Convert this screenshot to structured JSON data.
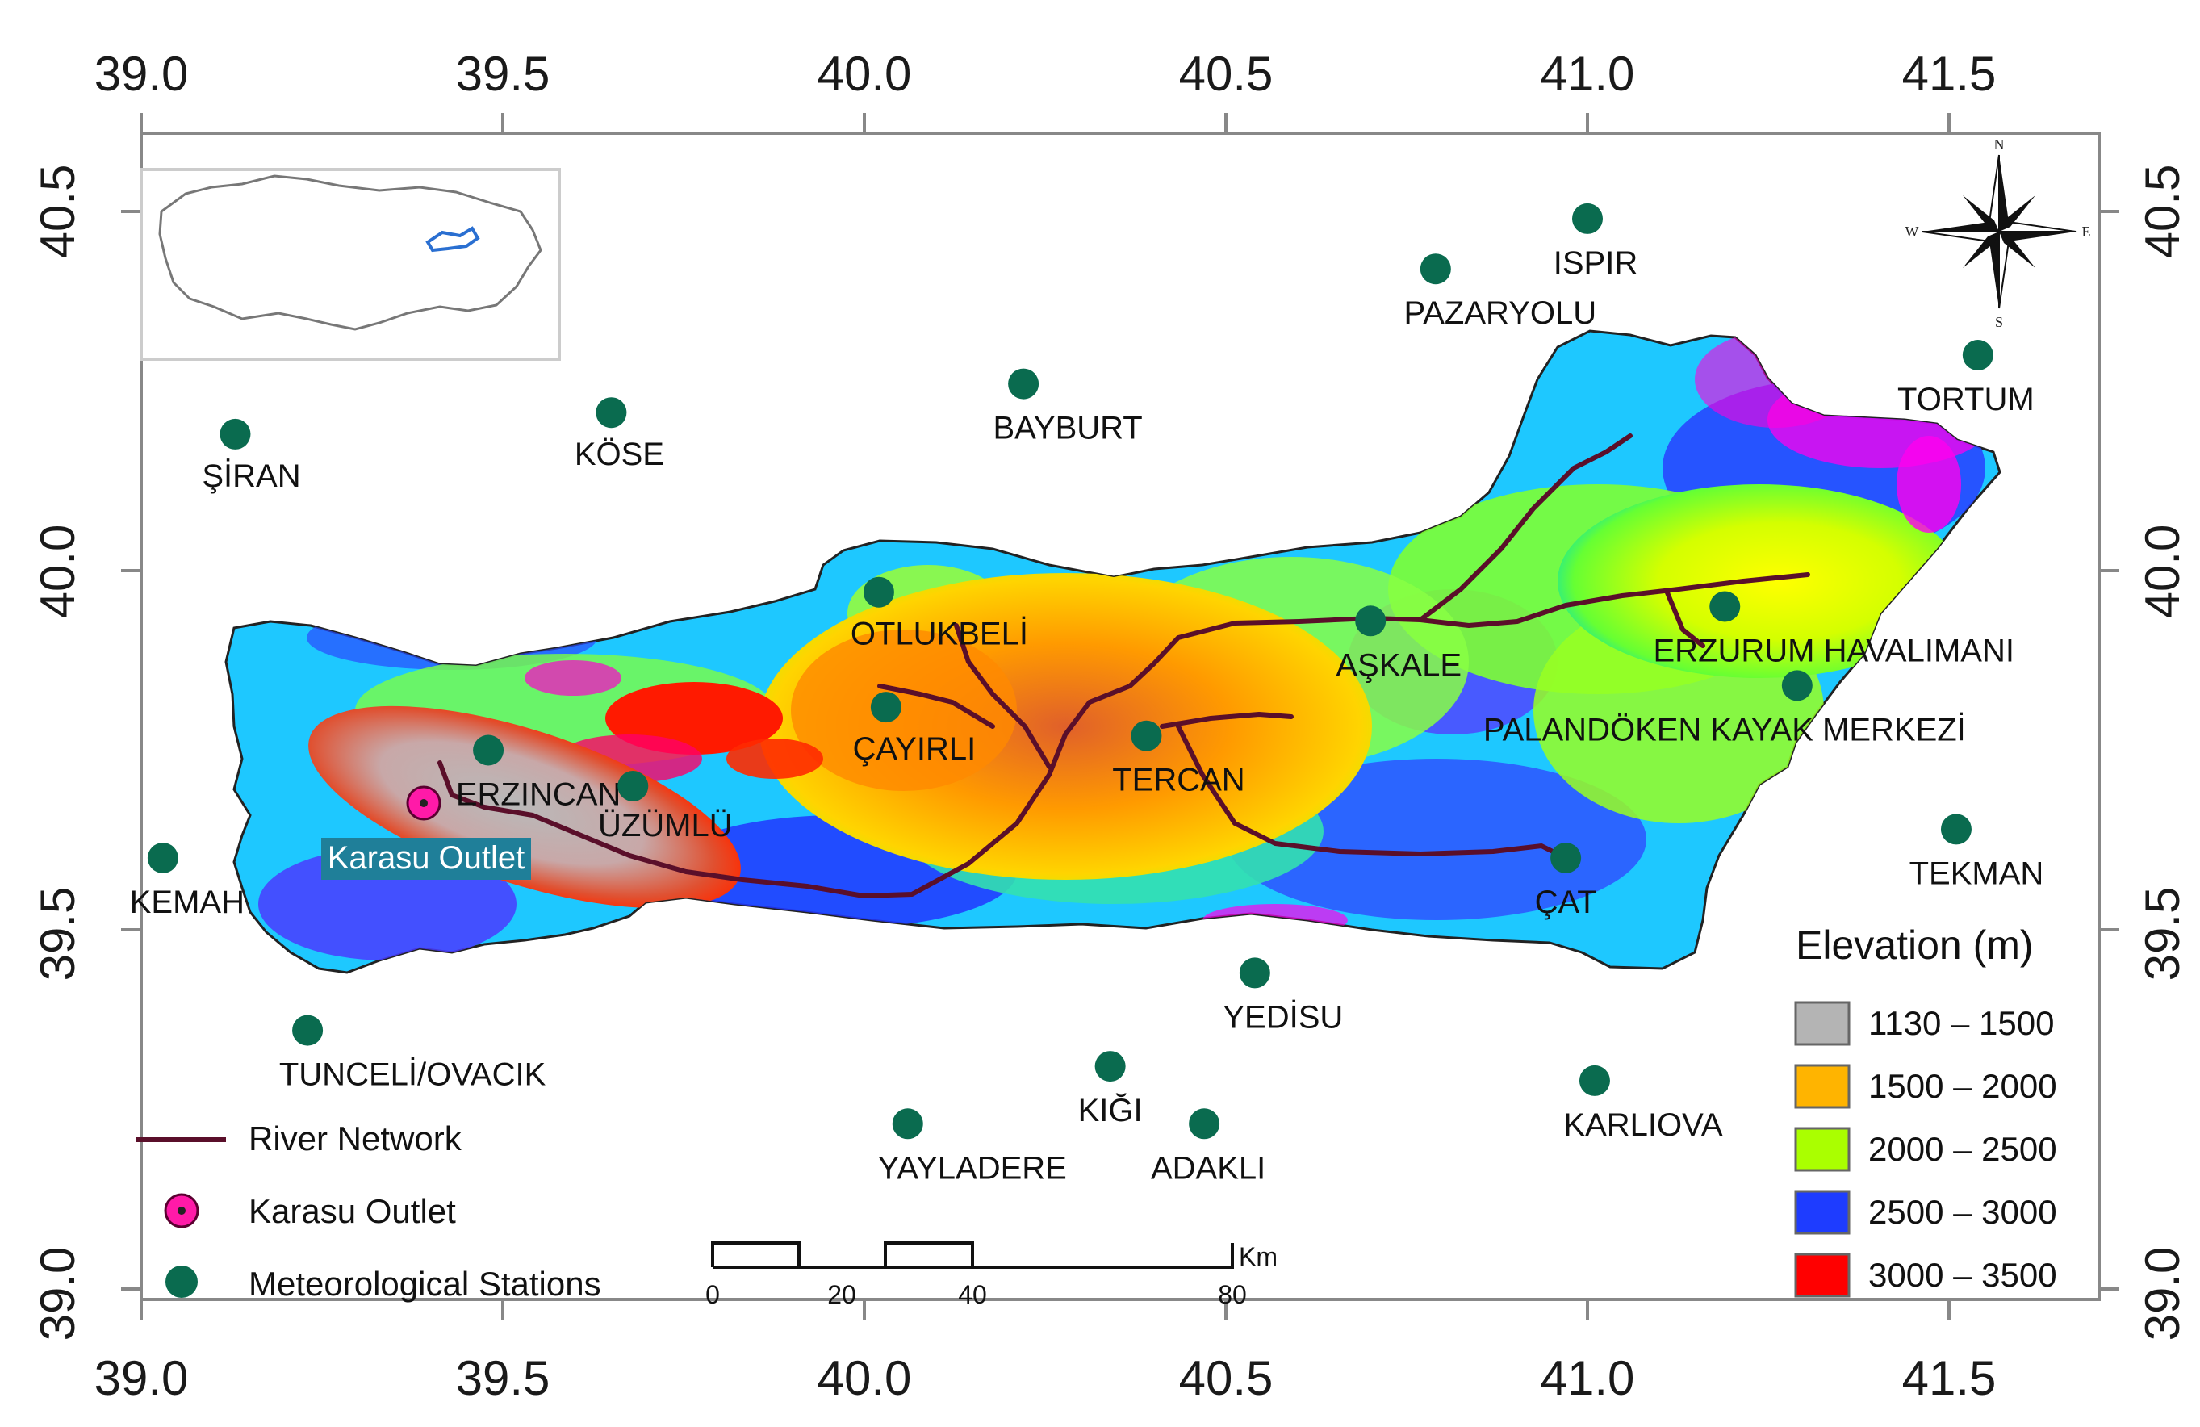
{
  "axes": {
    "top_ticks": [
      "39.0",
      "39.5",
      "40.0",
      "40.5",
      "41.0",
      "41.5"
    ],
    "bottom_ticks": [
      "39.0",
      "39.5",
      "40.0",
      "40.5",
      "41.0",
      "41.5"
    ],
    "left_ticks": [
      "40.5",
      "40.0",
      "39.5",
      "39.0"
    ],
    "right_ticks": [
      "40.5",
      "40.0",
      "39.5",
      "39.0"
    ]
  },
  "stations": [
    {
      "name": "ŞİRAN",
      "lon": 39.13,
      "lat": 40.19
    },
    {
      "name": "KÖSE",
      "lon": 39.65,
      "lat": 40.22
    },
    {
      "name": "BAYBURT",
      "lon": 40.22,
      "lat": 40.26
    },
    {
      "name": "PAZARYOLU",
      "lon": 40.79,
      "lat": 40.42
    },
    {
      "name": "ISPIR",
      "lon": 41.0,
      "lat": 40.49
    },
    {
      "name": "TORTUM",
      "lon": 41.54,
      "lat": 40.3
    },
    {
      "name": "OTLUKBELİ",
      "lon": 40.02,
      "lat": 39.97
    },
    {
      "name": "AŞKALE",
      "lon": 40.7,
      "lat": 39.93
    },
    {
      "name": "ERZURUM HAVALIMANI",
      "lon": 41.19,
      "lat": 39.95
    },
    {
      "name": "PALANDÖKEN KAYAK MERKEZİ",
      "lon": 41.29,
      "lat": 39.84
    },
    {
      "name": "ÇAYIRLI",
      "lon": 40.03,
      "lat": 39.81
    },
    {
      "name": "TERCAN",
      "lon": 40.39,
      "lat": 39.77
    },
    {
      "name": "ERZINCAN",
      "lon": 39.48,
      "lat": 39.75
    },
    {
      "name": "ÜZÜMLÜ",
      "lon": 39.68,
      "lat": 39.7
    },
    {
      "name": "ÇAT",
      "lon": 40.97,
      "lat": 39.6
    },
    {
      "name": "TEKMAN",
      "lon": 41.51,
      "lat": 39.64
    },
    {
      "name": "KEMAH",
      "lon": 39.03,
      "lat": 39.6
    },
    {
      "name": "YEDİSU",
      "lon": 40.54,
      "lat": 39.44
    },
    {
      "name": "TUNCELİ/OVACIK",
      "lon": 39.23,
      "lat": 39.36
    },
    {
      "name": "KIĞI",
      "lon": 40.34,
      "lat": 39.31
    },
    {
      "name": "YAYLADERE",
      "lon": 40.06,
      "lat": 39.23
    },
    {
      "name": "ADAKLI",
      "lon": 40.47,
      "lat": 39.23
    },
    {
      "name": "KARLIOVA",
      "lon": 41.01,
      "lat": 39.29
    }
  ],
  "outlet": {
    "name": "Karasu Outlet",
    "lon": 39.38,
    "lat": 39.68
  },
  "legend": {
    "elevation_title": "Elevation (m)",
    "classes": [
      {
        "range": "1130 – 1500",
        "color": "#b4b4b4"
      },
      {
        "range": "1500 – 2000",
        "color": "#ffb400"
      },
      {
        "range": "2000 – 2500",
        "color": "#aaff00"
      },
      {
        "range": "2500 – 3000",
        "color": "#1e3cff"
      },
      {
        "range": "3000 – 3500",
        "color": "#ff0000"
      }
    ],
    "river_network": "River Network",
    "karasu_outlet": "Karasu Outlet",
    "meteorological_stations": "Meteorological Stations"
  },
  "scalebar": {
    "ticks": [
      "0",
      "20",
      "40",
      "80"
    ],
    "unit": "Km"
  },
  "compass": {
    "n": "N",
    "s": "S",
    "e": "E",
    "w": "W"
  },
  "colors": {
    "station": "#0a6b4f",
    "river": "#5a0f2a",
    "outlet": "#ff1aa8",
    "outlet_label_bg": "#1f7f99",
    "basin_border": "#222222"
  }
}
